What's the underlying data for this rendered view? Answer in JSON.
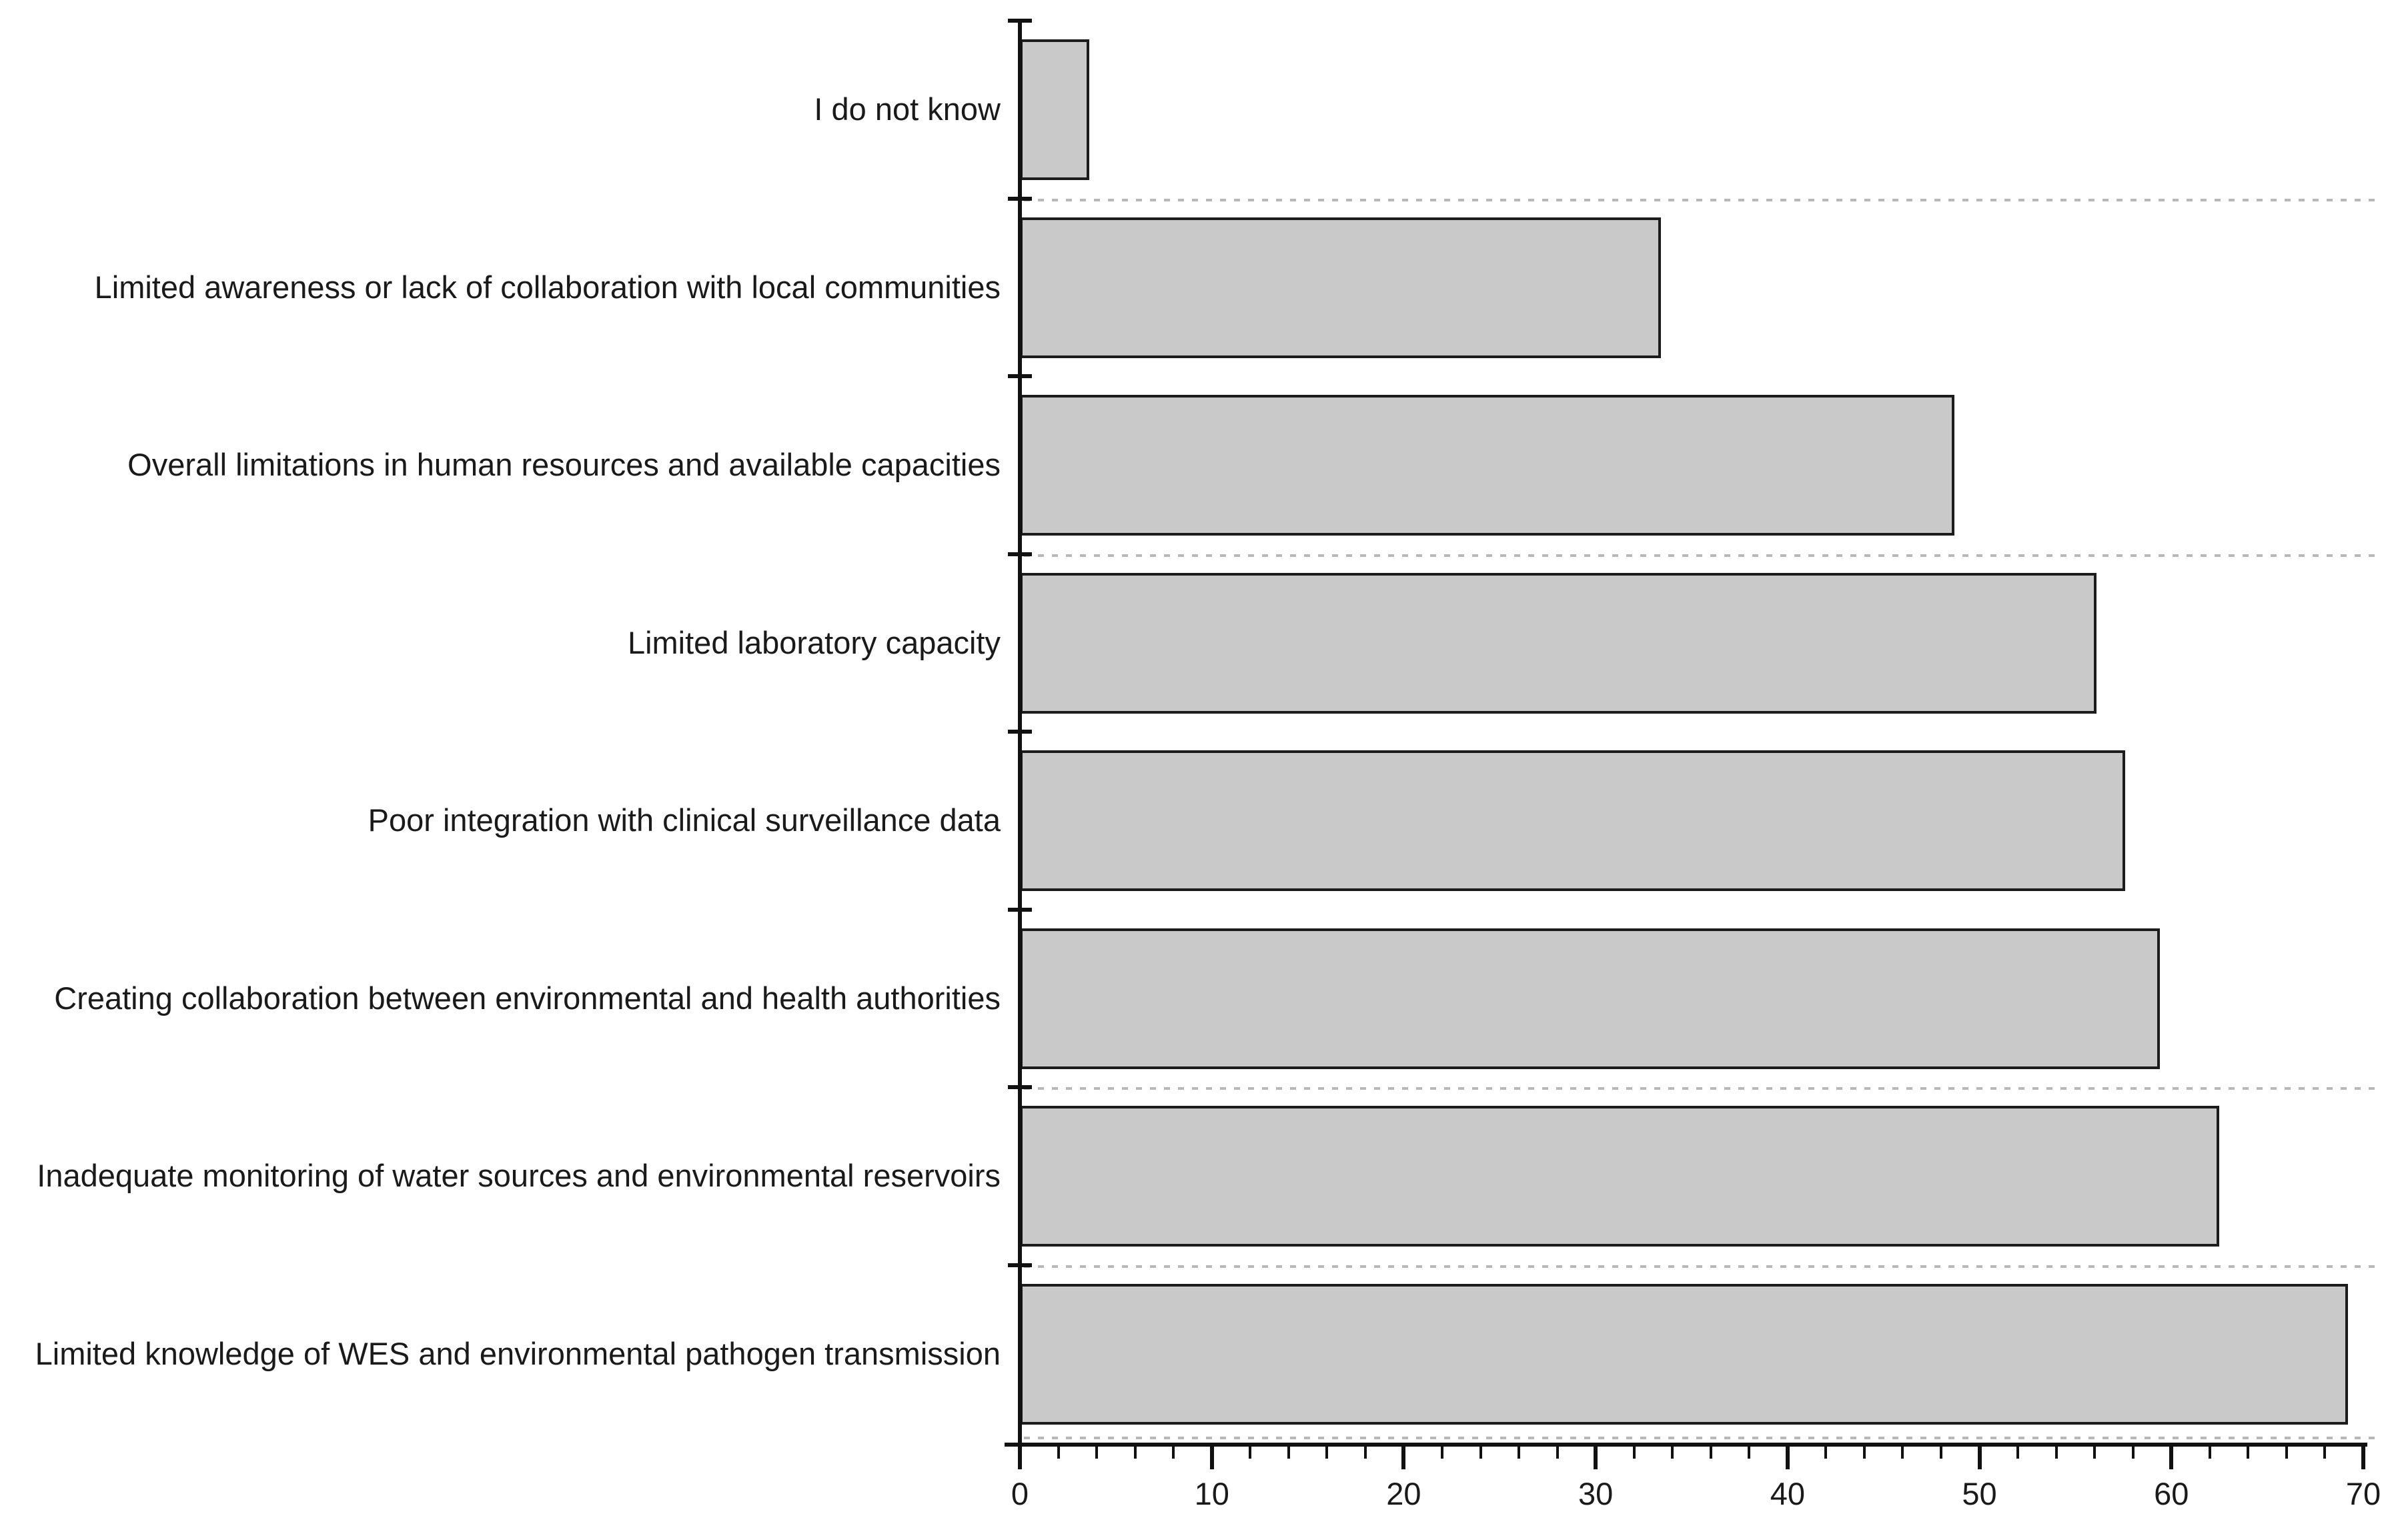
{
  "figure": {
    "background": "#ffffff",
    "title": ""
  },
  "chart_data": {
    "type": "bar",
    "orientation": "horizontal",
    "title": "",
    "xlabel": "",
    "ylabel": "",
    "categories": [
      "I do not know",
      "Limited awareness or lack of collaboration with local communities",
      "Overall limitations in human resources and available capacities",
      "Limited laboratory capacity",
      "Poor integration with clinical surveillance data",
      "Creating collaboration between environmental and health authorities",
      "Inadequate monitoring of water sources and environmental reservoirs",
      "Limited knowledge of WES and environmental pathogen transmission"
    ],
    "values": [
      3.6,
      33.4,
      48.7,
      56.1,
      57.6,
      59.4,
      62.5,
      69.2
    ],
    "xlim": [
      0,
      70
    ],
    "x_tick_labels": [
      "0",
      "10",
      "20",
      "30",
      "40",
      "50",
      "60",
      "70"
    ],
    "x_major_tick_step": 10,
    "x_minor_tick_step": 2,
    "legend": null,
    "grid": "dotted-horizontal-partial",
    "dotted_gridlines_after_category": [
      1,
      3,
      6,
      7,
      8
    ],
    "colors": {
      "bar_fill": "#c9c9c9",
      "bar_border": "#1c1c1c",
      "axis": "#111111",
      "gridline": "#b8b8b8",
      "text": "#1a1a1a"
    }
  }
}
